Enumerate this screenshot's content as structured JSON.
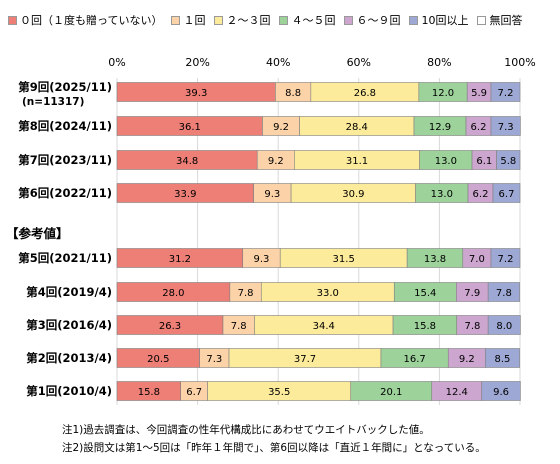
{
  "chart_data": {
    "type": "bar",
    "orientation": "horizontal",
    "stacked": "percent",
    "xlim": [
      0,
      100
    ],
    "x_ticks": [
      "0%",
      "20%",
      "40%",
      "60%",
      "80%",
      "100%"
    ],
    "grid": true,
    "legend_position": "top",
    "categories": [
      "第9回(2025/11)",
      "第8回(2024/11)",
      "第7回(2023/11)",
      "第6回(2022/11)",
      "第5回(2021/11)",
      "第4回(2019/4)",
      "第3回(2016/4)",
      "第2回(2013/4)",
      "第1回(2010/4)"
    ],
    "category_sublabels": [
      "(n=11317)",
      "",
      "",
      "",
      "",
      "",
      "",
      "",
      ""
    ],
    "group_label": "【参考値】",
    "series": [
      {
        "name": "０回（１度も贈っていない）",
        "color": "#ed7f77",
        "values": [
          39.3,
          36.1,
          34.8,
          33.9,
          31.2,
          28.0,
          26.3,
          20.5,
          15.8
        ],
        "labels": [
          "39.3",
          "36.1",
          "34.8",
          "33.9",
          "31.2",
          "28.0",
          "26.3",
          "20.5",
          "15.8"
        ]
      },
      {
        "name": "１回",
        "color": "#fcd3a9",
        "values": [
          8.8,
          9.2,
          9.2,
          9.3,
          9.3,
          7.8,
          7.8,
          7.3,
          6.7
        ],
        "labels": [
          "8.8",
          "9.2",
          "9.2",
          "9.3",
          "9.3",
          "7.8",
          "7.8",
          "7.3",
          "6.7"
        ]
      },
      {
        "name": "２～３回",
        "color": "#fdeb9c",
        "values": [
          26.8,
          28.4,
          31.1,
          30.9,
          31.5,
          33.0,
          34.4,
          37.7,
          35.5
        ],
        "labels": [
          "26.8",
          "28.4",
          "31.1",
          "30.9",
          "31.5",
          "33.0",
          "34.4",
          "37.7",
          "35.5"
        ]
      },
      {
        "name": "４～５回",
        "color": "#9dd39b",
        "values": [
          12.0,
          12.9,
          13.0,
          13.0,
          13.8,
          15.4,
          15.8,
          16.7,
          20.1
        ],
        "labels": [
          "12.0",
          "12.9",
          "13.0",
          "13.0",
          "13.8",
          "15.4",
          "15.8",
          "16.7",
          "20.1"
        ]
      },
      {
        "name": "６～９回",
        "color": "#cca6cf",
        "values": [
          5.9,
          6.2,
          6.1,
          6.2,
          7.0,
          7.9,
          7.8,
          9.2,
          12.4
        ],
        "labels": [
          "5.9",
          "6.2",
          "6.1",
          "6.2",
          "7.0",
          "7.9",
          "7.8",
          "9.2",
          "12.4"
        ]
      },
      {
        "name": "10回以上",
        "color": "#9ea8d4",
        "values": [
          7.2,
          7.3,
          5.8,
          6.7,
          7.2,
          7.8,
          8.0,
          8.5,
          9.6
        ],
        "labels": [
          "7.2",
          "7.3",
          "5.8",
          "6.7",
          "7.2",
          "7.8",
          "8.0",
          "8.5",
          "9.6"
        ]
      },
      {
        "name": "無回答",
        "color": "#ffffff",
        "values": [
          0,
          0,
          0,
          0,
          0,
          0,
          0,
          0,
          0
        ],
        "labels": [
          "",
          "",
          "",
          "",
          "",
          "",
          "",
          "",
          ""
        ]
      }
    ]
  },
  "notes": [
    "注1)過去調査は、今回調査の性年代構成比にあわせてウエイトバックした値。",
    "注2)設問文は第1～5回は「昨年１年間で」、第6回以降は「直近１年間に」となっている。"
  ]
}
